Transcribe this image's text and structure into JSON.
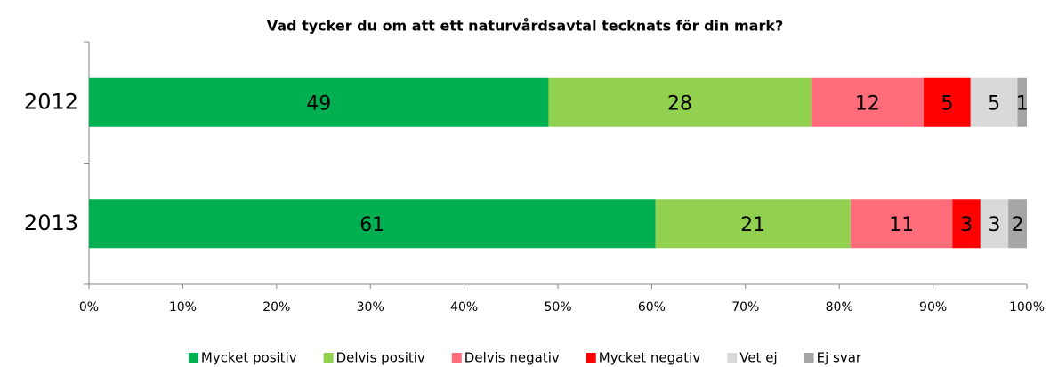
{
  "chart_data": {
    "type": "stacked_bar_horizontal",
    "stacking": "percent",
    "title": "Vad tycker du om att ett naturvårdsavtal tecknats för din mark?",
    "categories": [
      "2012",
      "2013"
    ],
    "series": [
      {
        "name": "Mycket positiv",
        "color": "#00b050",
        "values": [
          49,
          61
        ]
      },
      {
        "name": "Delvis positiv",
        "color": "#92d050",
        "values": [
          28,
          21
        ]
      },
      {
        "name": "Delvis negativ",
        "color": "#ff6d7a",
        "values": [
          12,
          11
        ]
      },
      {
        "name": "Mycket negativ",
        "color": "#ff0000",
        "values": [
          5,
          3
        ]
      },
      {
        "name": "Vet ej",
        "color": "#d9d9d9",
        "values": [
          5,
          3
        ]
      },
      {
        "name": "Ej svar",
        "color": "#a6a6a6",
        "values": [
          1,
          2
        ]
      }
    ],
    "xlim": [
      0,
      100
    ],
    "xticks": [
      {
        "value": 0,
        "label": "0%"
      },
      {
        "value": 10,
        "label": "10%"
      },
      {
        "value": 20,
        "label": "20%"
      },
      {
        "value": 30,
        "label": "30%"
      },
      {
        "value": 40,
        "label": "40%"
      },
      {
        "value": 50,
        "label": "50%"
      },
      {
        "value": 60,
        "label": "60%"
      },
      {
        "value": 70,
        "label": "70%"
      },
      {
        "value": 80,
        "label": "80%"
      },
      {
        "value": 90,
        "label": "90%"
      },
      {
        "value": 100,
        "label": "100%"
      }
    ],
    "legend": "bottom"
  }
}
